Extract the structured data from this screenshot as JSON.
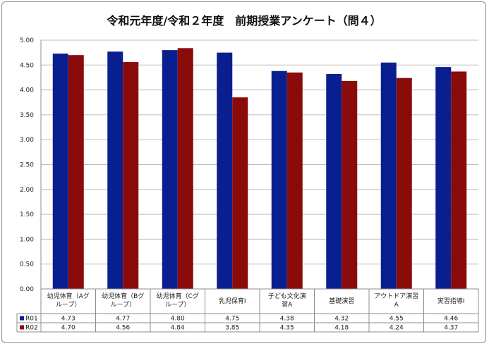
{
  "chart_data": {
    "type": "bar",
    "title": "令和元年度/令和２年度　前期授業アンケート（問４）",
    "categories": [
      [
        "幼児体育（Aグ",
        "ループ）"
      ],
      [
        "幼児体育（Bグ",
        "ループ）"
      ],
      [
        "幼児体育（Cグ",
        "ループ）"
      ],
      [
        "乳児保育Ⅰ"
      ],
      [
        "子ども文化演",
        "習A"
      ],
      [
        "基礎演習"
      ],
      [
        "アウトドア演習",
        "A"
      ],
      [
        "実習指導Ⅰ"
      ]
    ],
    "series": [
      {
        "name": "R01",
        "color": "#0a1f8f",
        "values": [
          4.73,
          4.77,
          4.8,
          4.75,
          4.38,
          4.32,
          4.55,
          4.46
        ],
        "labels": [
          "4.73",
          "4.77",
          "4.80",
          "4.75",
          "4.38",
          "4.32",
          "4.55",
          "4.46"
        ]
      },
      {
        "name": "R02",
        "color": "#8b0a0a",
        "values": [
          4.7,
          4.56,
          4.84,
          3.85,
          4.35,
          4.18,
          4.24,
          4.37
        ],
        "labels": [
          "4.70",
          "4.56",
          "4.84",
          "3.85",
          "4.35",
          "4.18",
          "4.24",
          "4.37"
        ]
      }
    ],
    "ylim": [
      0,
      5
    ],
    "yticks": [
      "0.00",
      "0.50",
      "1.00",
      "1.50",
      "2.00",
      "2.50",
      "3.00",
      "3.50",
      "4.00",
      "4.50",
      "5.00"
    ],
    "grid": true,
    "legend": "data-table"
  }
}
